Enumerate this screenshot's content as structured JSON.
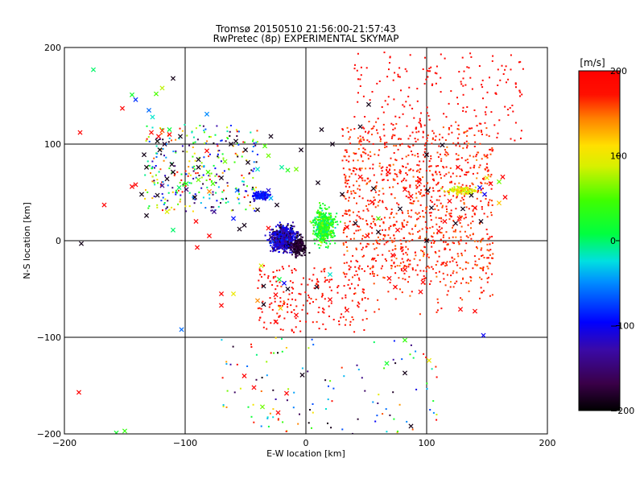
{
  "chart_data": {
    "type": "scatter",
    "title": "Tromsø 20150510 21:56:00-21:57:43",
    "subtitle": "RwPretec (8p) EXPERIMENTAL SKYMAP",
    "xlabel": "E-W location [km]",
    "ylabel": "N-S location [km]",
    "xlim": [
      -200,
      200
    ],
    "ylim": [
      -200,
      200
    ],
    "xticks": [
      -200,
      -100,
      0,
      100,
      200
    ],
    "yticks": [
      -200,
      -100,
      0,
      100,
      200
    ],
    "xtick_labels": [
      "−200",
      "−100",
      "0",
      "100",
      "200"
    ],
    "ytick_labels": [
      "−200",
      "−100",
      "0",
      "100",
      "200"
    ],
    "grid": true,
    "colorbar": {
      "label": "[m/s]",
      "range": [
        -200,
        200
      ],
      "ticks": [
        200,
        100,
        0,
        -100,
        -200
      ],
      "tick_labels": [
        "200",
        "100",
        "0",
        "−100",
        "−200"
      ],
      "colormap": "black-purple-blue-cyan-green-yellow-red"
    },
    "points": [
      [
        -176,
        177,
        0,
        "x"
      ],
      [
        -124,
        152,
        50,
        "x"
      ],
      [
        -119,
        158,
        80,
        "x"
      ],
      [
        -141,
        146,
        -80,
        "x"
      ],
      [
        -130,
        135,
        -60,
        "x"
      ],
      [
        -127,
        128,
        -20,
        "x"
      ],
      [
        -82,
        131,
        -50,
        "x"
      ],
      [
        -119,
        114,
        160,
        "x"
      ],
      [
        -113,
        110,
        180,
        "x"
      ],
      [
        -122,
        108,
        200,
        "x"
      ],
      [
        -113,
        115,
        10,
        "x"
      ],
      [
        -104,
        108,
        -190,
        "x"
      ],
      [
        -123,
        103,
        -200,
        "x"
      ],
      [
        -117,
        100,
        -180,
        "x"
      ],
      [
        -121,
        94,
        -190,
        "x"
      ],
      [
        -134,
        89,
        -190,
        "x"
      ],
      [
        -132,
        76,
        -190,
        "x"
      ],
      [
        -111,
        79,
        -190,
        "x"
      ],
      [
        -110,
        71,
        -190,
        "x"
      ],
      [
        -115,
        64,
        -190,
        "x"
      ],
      [
        -99,
        59,
        30,
        "x"
      ],
      [
        -105,
        55,
        0,
        "x"
      ],
      [
        -89,
        63,
        60,
        "x"
      ],
      [
        -81,
        71,
        50,
        "x"
      ],
      [
        -62,
        100,
        -190,
        "x"
      ],
      [
        -58,
        103,
        -190,
        "x"
      ],
      [
        -34,
        98,
        50,
        "x"
      ],
      [
        -40,
        74,
        -20,
        "x"
      ],
      [
        -57,
        52,
        -60,
        "x"
      ],
      [
        -42,
        48,
        -100,
        "x"
      ],
      [
        -36,
        47,
        -90,
        "x"
      ],
      [
        -29,
        44,
        -40,
        "x"
      ],
      [
        -31,
        52,
        -110,
        "x"
      ],
      [
        -4,
        94,
        -190,
        "x"
      ],
      [
        -8,
        74,
        60,
        "x"
      ],
      [
        -20,
        76,
        -10,
        "x"
      ],
      [
        -15,
        73,
        30,
        "x"
      ],
      [
        13,
        115,
        -190,
        "x"
      ],
      [
        22,
        100,
        -190,
        "x"
      ],
      [
        45,
        118,
        -190,
        "x"
      ],
      [
        52,
        141,
        -190,
        "x"
      ],
      [
        -128,
        112,
        180,
        "x"
      ],
      [
        -167,
        37,
        200,
        "x"
      ],
      [
        -144,
        56,
        200,
        "x"
      ],
      [
        -136,
        48,
        -190,
        "x"
      ],
      [
        -187,
        112,
        200,
        "x"
      ],
      [
        -152,
        137,
        200,
        "x"
      ],
      [
        -115,
        30,
        90,
        "x"
      ],
      [
        -92,
        45,
        -190,
        "x"
      ],
      [
        -76,
        30,
        -140,
        "x"
      ],
      [
        -80,
        5,
        200,
        "x"
      ],
      [
        -90,
        -7,
        200,
        "x"
      ],
      [
        -110,
        11,
        0,
        "x"
      ],
      [
        -99,
        53,
        -150,
        "x"
      ],
      [
        -60,
        23,
        -90,
        "x"
      ],
      [
        -51,
        16,
        -190,
        "x"
      ],
      [
        -37,
        -26,
        90,
        "x"
      ],
      [
        -22,
        -40,
        10,
        "x"
      ],
      [
        -15,
        -50,
        -190,
        "x"
      ],
      [
        -25,
        -56,
        200,
        "x"
      ],
      [
        -40,
        -62,
        140,
        "x"
      ],
      [
        -70,
        -55,
        200,
        "x"
      ],
      [
        -70,
        -67,
        200,
        "x"
      ],
      [
        -60,
        -55,
        100,
        "x"
      ],
      [
        -35,
        -47,
        -190,
        "x"
      ],
      [
        9,
        -48,
        -190,
        "x"
      ],
      [
        20,
        -35,
        -20,
        "x"
      ],
      [
        -18,
        -44,
        -100,
        "x"
      ],
      [
        -55,
        12,
        -190,
        "x"
      ],
      [
        -31,
        13,
        200,
        "x"
      ],
      [
        -24,
        37,
        -190,
        "x"
      ],
      [
        34,
        14,
        200,
        "x"
      ],
      [
        41,
        18,
        -190,
        "x"
      ],
      [
        51,
        5,
        200,
        "x"
      ],
      [
        60,
        9,
        -190,
        "x"
      ],
      [
        72,
        -15,
        200,
        "x"
      ],
      [
        100,
        0,
        -190,
        "x"
      ],
      [
        110,
        10,
        200,
        "x"
      ],
      [
        124,
        18,
        -190,
        "x"
      ],
      [
        130,
        33,
        -190,
        "x"
      ],
      [
        145,
        20,
        -190,
        "x"
      ],
      [
        148,
        48,
        -100,
        "x"
      ],
      [
        144,
        55,
        -100,
        "x"
      ],
      [
        153,
        59,
        200,
        "x"
      ],
      [
        160,
        61,
        60,
        "x"
      ],
      [
        163,
        66,
        200,
        "x"
      ],
      [
        165,
        45,
        200,
        "x"
      ],
      [
        140,
        34,
        200,
        "x"
      ],
      [
        94,
        61,
        200,
        "x"
      ],
      [
        100,
        89,
        -190,
        "x"
      ],
      [
        113,
        99,
        -190,
        "x"
      ],
      [
        126,
        76,
        200,
        "x"
      ],
      [
        101,
        52,
        -190,
        "x"
      ],
      [
        78,
        33,
        -190,
        "x"
      ],
      [
        56,
        54,
        -190,
        "x"
      ],
      [
        87,
        46,
        200,
        "x"
      ],
      [
        68,
        71,
        200,
        "x"
      ],
      [
        82,
        53,
        200,
        "x"
      ],
      [
        45,
        66,
        200,
        "x"
      ],
      [
        30,
        48,
        -190,
        "x"
      ],
      [
        55,
        40,
        200,
        "x"
      ],
      [
        119,
        41,
        200,
        "x"
      ],
      [
        104,
        34,
        -190,
        "x"
      ],
      [
        115,
        20,
        200,
        "x"
      ],
      [
        127,
        23,
        200,
        "x"
      ],
      [
        137,
        47,
        -190,
        "x"
      ],
      [
        150,
        65,
        100,
        "x"
      ],
      [
        160,
        39,
        120,
        "x"
      ],
      [
        60,
        23,
        50,
        "x"
      ],
      [
        76,
        11,
        200,
        "x"
      ],
      [
        69,
        -39,
        200,
        "x"
      ],
      [
        74,
        -48,
        200,
        "x"
      ],
      [
        82,
        -30,
        200,
        "x"
      ],
      [
        97,
        -43,
        200,
        "x"
      ],
      [
        95,
        -53,
        200,
        "x"
      ],
      [
        140,
        -73,
        200,
        "x"
      ],
      [
        128,
        -71,
        200,
        "x"
      ],
      [
        147,
        -98,
        -100,
        "x"
      ],
      [
        20,
        -61,
        200,
        "x"
      ],
      [
        34,
        -72,
        200,
        "x"
      ],
      [
        -8,
        -77,
        200,
        "x"
      ],
      [
        -25,
        -84,
        200,
        "x"
      ],
      [
        -21,
        -70,
        120,
        "x"
      ],
      [
        -35,
        -66,
        -190,
        "x"
      ],
      [
        -3,
        -139,
        -190,
        "x"
      ],
      [
        -43,
        -152,
        200,
        "x"
      ],
      [
        -23,
        -178,
        200,
        "x"
      ],
      [
        -36,
        -172,
        60,
        "x"
      ],
      [
        -16,
        -158,
        200,
        "x"
      ],
      [
        -51,
        -140,
        200,
        "x"
      ],
      [
        87,
        -192,
        -190,
        "x"
      ],
      [
        82,
        -137,
        -190,
        "x"
      ],
      [
        102,
        -124,
        100,
        "x"
      ],
      [
        67,
        -127,
        20,
        "x"
      ],
      [
        82,
        -103,
        40,
        "x"
      ],
      [
        -188,
        -157,
        200,
        "x"
      ],
      [
        -150,
        -197,
        40,
        "x"
      ],
      [
        -103,
        -92,
        -60,
        "x"
      ],
      [
        -123,
        47,
        -190,
        "x"
      ],
      [
        -141,
        58,
        200,
        "x"
      ],
      [
        -67,
        82,
        60,
        "x"
      ],
      [
        -48,
        81,
        -190,
        "x"
      ],
      [
        -29,
        108,
        -190,
        "x"
      ],
      [
        -82,
        93,
        200,
        "x"
      ],
      [
        -89,
        84,
        -190,
        "x"
      ],
      [
        -70,
        65,
        -190,
        "x"
      ],
      [
        -80,
        51,
        140,
        "x"
      ],
      [
        -40,
        32,
        -190,
        "x"
      ],
      [
        -31,
        88,
        60,
        "x"
      ],
      [
        -50,
        94,
        -190,
        "x"
      ],
      [
        10,
        60,
        -190,
        "x"
      ],
      [
        -91,
        20,
        200,
        "x"
      ],
      [
        -119,
        57,
        -140,
        "x"
      ],
      [
        -132,
        26,
        -190,
        "x"
      ],
      [
        -144,
        151,
        20,
        "x"
      ],
      [
        -186,
        -3,
        -190,
        "x"
      ],
      [
        -157,
        -199,
        20,
        "x"
      ],
      [
        -110,
        168,
        -190,
        "x"
      ],
      [
        -89,
        76,
        -190,
        "x"
      ],
      [
        -77,
        59,
        50,
        "x"
      ]
    ]
  }
}
